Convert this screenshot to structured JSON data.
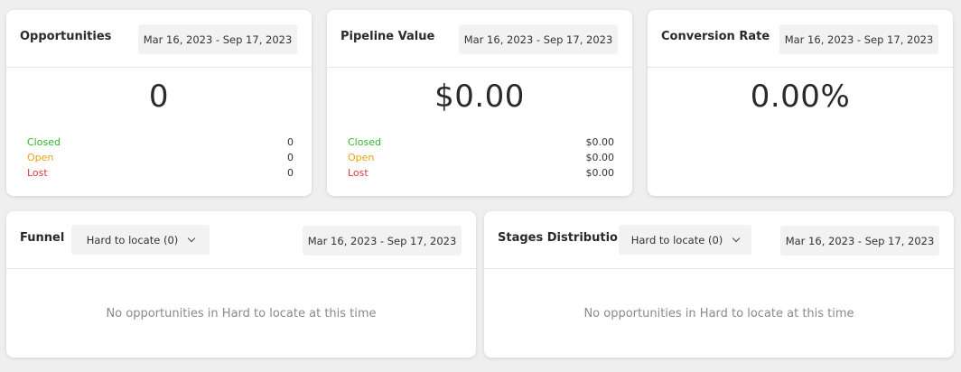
{
  "opportunities": {
    "title": "Opportunities",
    "date_range": "Mar 16, 2023 - Sep 17, 2023",
    "value": "0",
    "stats": [
      {
        "label": "Closed",
        "value": "0"
      },
      {
        "label": "Open",
        "value": "0"
      },
      {
        "label": "Lost",
        "value": "0"
      }
    ]
  },
  "pipeline": {
    "title": "Pipeline Value",
    "date_range": "Mar 16, 2023 - Sep 17, 2023",
    "value": "$0.00",
    "stats": [
      {
        "label": "Closed",
        "value": "$0.00"
      },
      {
        "label": "Open",
        "value": "$0.00"
      },
      {
        "label": "Lost",
        "value": "$0.00"
      }
    ]
  },
  "conversion": {
    "title": "Conversion Rate",
    "date_range": "Mar 16, 2023 - Sep 17, 2023",
    "value": "0.00%"
  },
  "funnel": {
    "title": "Funnel",
    "dropdown": "Hard to locate (0)",
    "date_range": "Mar 16, 2023 - Sep 17, 2023",
    "empty_message": "No opportunities in Hard to locate at this time"
  },
  "stages": {
    "title": "Stages Distribution",
    "dropdown": "Hard to locate (0)",
    "date_range": "Mar 16, 2023 - Sep 17, 2023",
    "empty_message": "No opportunities in Hard to locate at this time"
  },
  "colors": {
    "closed": "#2fb52f",
    "open": "#e8a317",
    "lost": "#e03c3c"
  },
  "icons": {
    "dropdown": "chevron-down-icon"
  }
}
